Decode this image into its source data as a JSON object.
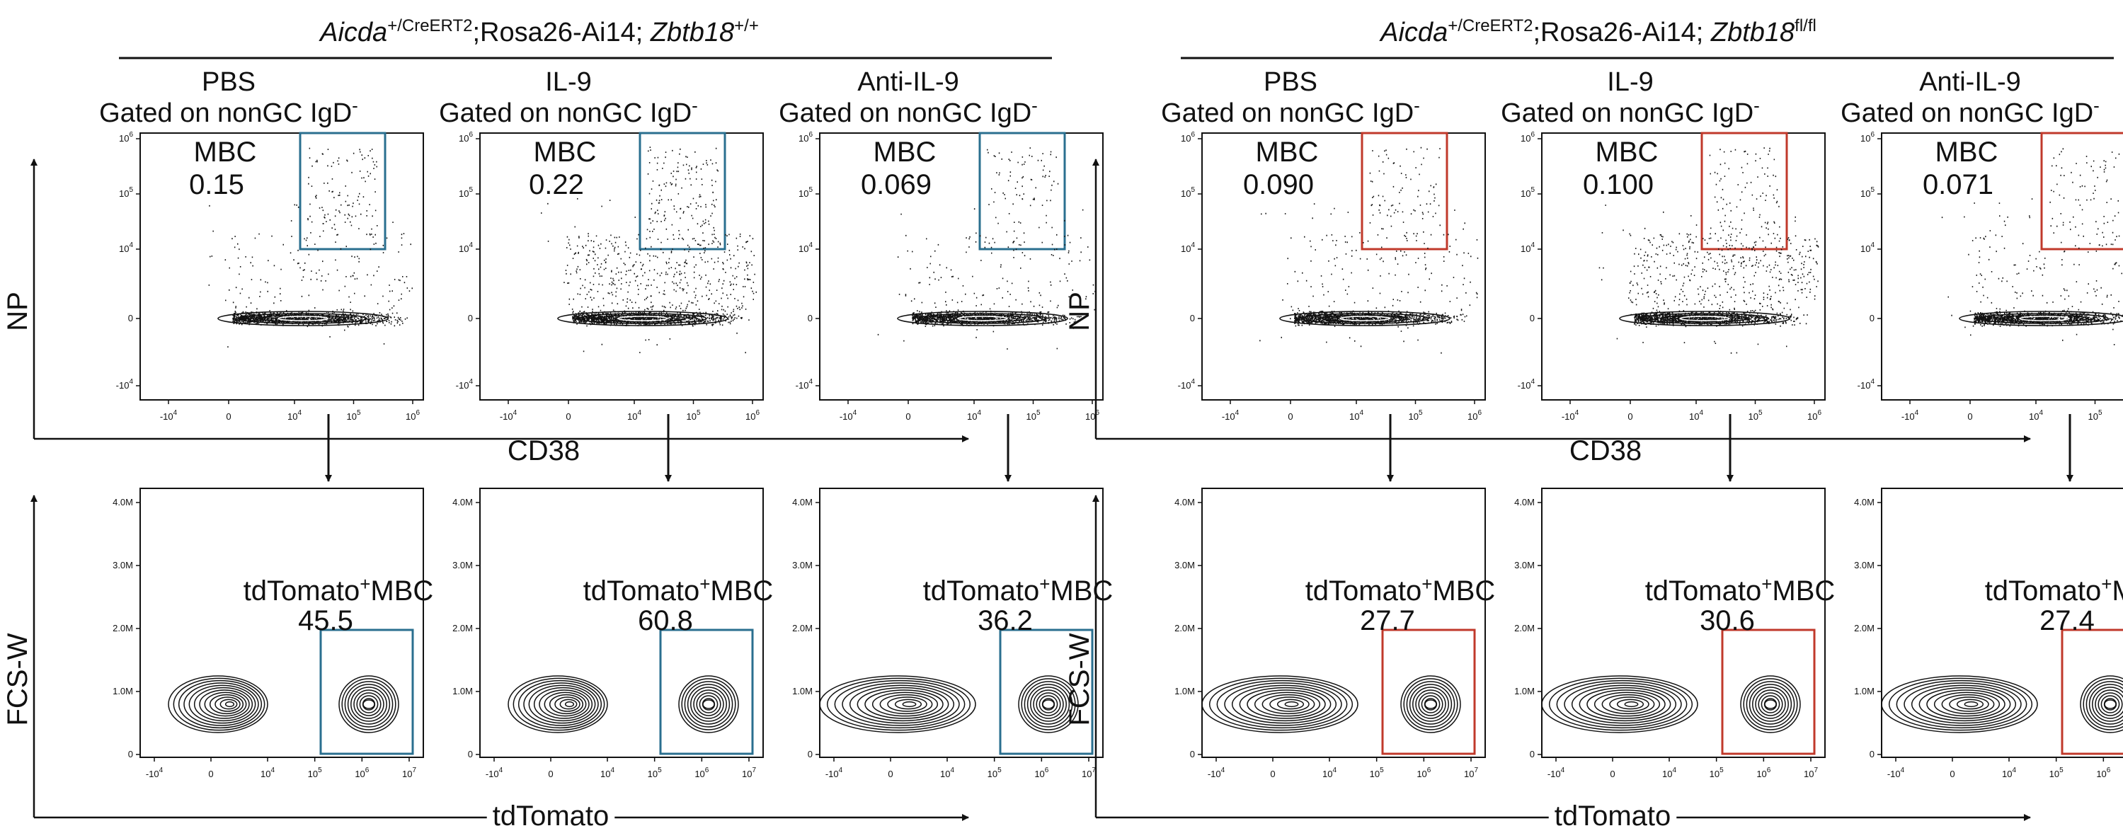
{
  "colors": {
    "wildtype_gate": "#2a6f8f",
    "knockout_gate": "#c0392b",
    "ink": "#111111"
  },
  "groups": [
    {
      "title_gene1": "Aicda",
      "title_gene1_sup": "+/CreERT2",
      "title_mid": ";Rosa26-Ai14; ",
      "title_gene2": "Zbtb18",
      "title_gene2_sup": "+/+",
      "gate_color": "wildtype_gate",
      "conditions": [
        {
          "name": "PBS",
          "mbc_pct": "0.15",
          "td_pct": "45.5"
        },
        {
          "name": "IL-9",
          "mbc_pct": "0.22",
          "td_pct": "60.8"
        },
        {
          "name": "Anti-IL-9",
          "mbc_pct": "0.069",
          "td_pct": "36.2"
        }
      ]
    },
    {
      "title_gene1": "Aicda",
      "title_gene1_sup": "+/CreERT2",
      "title_mid": ";Rosa26-Ai14; ",
      "title_gene2": "Zbtb18",
      "title_gene2_sup": "fl/fl",
      "gate_color": "knockout_gate",
      "conditions": [
        {
          "name": "PBS",
          "mbc_pct": "0.090",
          "td_pct": "27.7"
        },
        {
          "name": "IL-9",
          "mbc_pct": "0.100",
          "td_pct": "30.6"
        },
        {
          "name": "Anti-IL-9",
          "mbc_pct": "0.071",
          "td_pct": "27.4"
        }
      ]
    }
  ],
  "labels": {
    "gated_on": "Gated on nonGC IgD",
    "gated_sup": "-",
    "mbc": "MBC",
    "td_gate_main": "tdTomato",
    "td_gate_sup": "+",
    "td_gate_tail": "MBC"
  },
  "axes": {
    "top_y_label": "NP",
    "top_x_label": "CD38",
    "bottom_y_label": "FCS-W",
    "bottom_x_label": "tdTomato",
    "top_y_ticks": [
      {
        "m": "10",
        "e": "6",
        "v": 6
      },
      {
        "m": "10",
        "e": "5",
        "v": 5
      },
      {
        "m": "10",
        "e": "4",
        "v": 4
      },
      {
        "m": "0",
        "e": "",
        "v": 0
      },
      {
        "m": "-10",
        "e": "4",
        "v": -4
      }
    ],
    "top_x_ticks": [
      {
        "m": "-10",
        "e": "4",
        "v": -4
      },
      {
        "m": "0",
        "e": "",
        "v": 0
      },
      {
        "m": "10",
        "e": "4",
        "v": 4
      },
      {
        "m": "10",
        "e": "5",
        "v": 5
      },
      {
        "m": "10",
        "e": "6",
        "v": 6
      }
    ],
    "bottom_y_ticks": [
      {
        "t": "4.0M",
        "v": 4
      },
      {
        "t": "3.0M",
        "v": 3
      },
      {
        "t": "2.0M",
        "v": 2
      },
      {
        "t": "1.0M",
        "v": 1
      },
      {
        "t": "0",
        "v": 0
      }
    ],
    "bottom_x_ticks": [
      {
        "m": "-10",
        "e": "4",
        "v": -4
      },
      {
        "m": "0",
        "e": "",
        "v": 0
      },
      {
        "m": "10",
        "e": "4",
        "v": 4
      },
      {
        "m": "10",
        "e": "5",
        "v": 5
      },
      {
        "m": "10",
        "e": "6",
        "v": 6
      },
      {
        "m": "10",
        "e": "7",
        "v": 7
      }
    ]
  },
  "chart_data": [
    {
      "type": "scatter",
      "title": "",
      "xlabel": "CD38",
      "ylabel": "NP",
      "x_scale": "biexponential",
      "y_scale": "biexponential",
      "series": [
        {
          "group": "Zbtb18 +/+",
          "condition": "PBS",
          "gate": "MBC",
          "percent": 0.15
        },
        {
          "group": "Zbtb18 +/+",
          "condition": "IL-9",
          "gate": "MBC",
          "percent": 0.22
        },
        {
          "group": "Zbtb18 +/+",
          "condition": "Anti-IL-9",
          "gate": "MBC",
          "percent": 0.069
        },
        {
          "group": "Zbtb18 fl/fl",
          "condition": "PBS",
          "gate": "MBC",
          "percent": 0.09
        },
        {
          "group": "Zbtb18 fl/fl",
          "condition": "IL-9",
          "gate": "MBC",
          "percent": 0.1
        },
        {
          "group": "Zbtb18 fl/fl",
          "condition": "Anti-IL-9",
          "gate": "MBC",
          "percent": 0.071
        }
      ]
    },
    {
      "type": "contour",
      "title": "",
      "xlabel": "tdTomato",
      "ylabel": "FCS-W",
      "ylim": [
        "0",
        "4.0M"
      ],
      "series": [
        {
          "group": "Zbtb18 +/+",
          "condition": "PBS",
          "gate": "tdTomato+MBC",
          "percent": 45.5
        },
        {
          "group": "Zbtb18 +/+",
          "condition": "IL-9",
          "gate": "tdTomato+MBC",
          "percent": 60.8
        },
        {
          "group": "Zbtb18 +/+",
          "condition": "Anti-IL-9",
          "gate": "tdTomato+MBC",
          "percent": 36.2
        },
        {
          "group": "Zbtb18 fl/fl",
          "condition": "PBS",
          "gate": "tdTomato+MBC",
          "percent": 27.7
        },
        {
          "group": "Zbtb18 fl/fl",
          "condition": "IL-9",
          "gate": "tdTomato+MBC",
          "percent": 30.6
        },
        {
          "group": "Zbtb18 fl/fl",
          "condition": "Anti-IL-9",
          "gate": "tdTomato+MBC",
          "percent": 27.4
        }
      ]
    }
  ]
}
